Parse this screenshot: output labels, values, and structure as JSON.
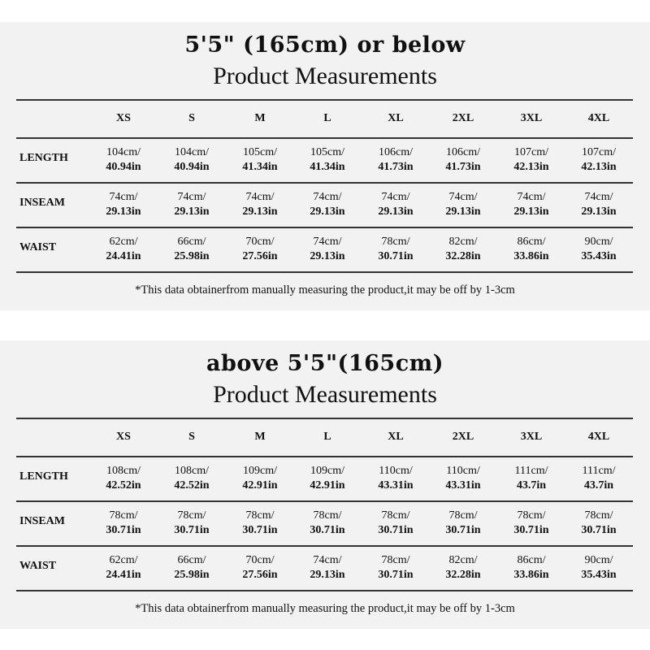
{
  "sizes": [
    "XS",
    "S",
    "M",
    "L",
    "XL",
    "2XL",
    "3XL",
    "4XL"
  ],
  "panels": [
    {
      "title": "5'5\" (165cm) or below",
      "subtitle": "Product Measurements",
      "rows": [
        {
          "label": "LENGTH",
          "cm": [
            "104cm/",
            "104cm/",
            "105cm/",
            "105cm/",
            "106cm/",
            "106cm/",
            "107cm/",
            "107cm/"
          ],
          "in": [
            "40.94in",
            "40.94in",
            "41.34in",
            "41.34in",
            "41.73in",
            "41.73in",
            "42.13in",
            "42.13in"
          ]
        },
        {
          "label": "INSEAM",
          "cm": [
            "74cm/",
            "74cm/",
            "74cm/",
            "74cm/",
            "74cm/",
            "74cm/",
            "74cm/",
            "74cm/"
          ],
          "in": [
            "29.13in",
            "29.13in",
            "29.13in",
            "29.13in",
            "29.13in",
            "29.13in",
            "29.13in",
            "29.13in"
          ]
        },
        {
          "label": "WAIST",
          "cm": [
            "62cm/",
            "66cm/",
            "70cm/",
            "74cm/",
            "78cm/",
            "82cm/",
            "86cm/",
            "90cm/"
          ],
          "in": [
            "24.41in",
            "25.98in",
            "27.56in",
            "29.13in",
            "30.71in",
            "32.28in",
            "33.86in",
            "35.43in"
          ]
        }
      ],
      "note": "*This data obtainerfrom manually measuring the product,it may be off by 1-3cm"
    },
    {
      "title": "above 5'5\"(165cm)",
      "subtitle": "Product Measurements",
      "rows": [
        {
          "label": "LENGTH",
          "cm": [
            "108cm/",
            "108cm/",
            "109cm/",
            "109cm/",
            "110cm/",
            "110cm/",
            "111cm/",
            "111cm/"
          ],
          "in": [
            "42.52in",
            "42.52in",
            "42.91in",
            "42.91in",
            "43.31in",
            "43.31in",
            "43.7in",
            "43.7in"
          ]
        },
        {
          "label": "INSEAM",
          "cm": [
            "78cm/",
            "78cm/",
            "78cm/",
            "78cm/",
            "78cm/",
            "78cm/",
            "78cm/",
            "78cm/"
          ],
          "in": [
            "30.71in",
            "30.71in",
            "30.71in",
            "30.71in",
            "30.71in",
            "30.71in",
            "30.71in",
            "30.71in"
          ]
        },
        {
          "label": "WAIST",
          "cm": [
            "62cm/",
            "66cm/",
            "70cm/",
            "74cm/",
            "78cm/",
            "82cm/",
            "86cm/",
            "90cm/"
          ],
          "in": [
            "24.41in",
            "25.98in",
            "27.56in",
            "29.13in",
            "30.71in",
            "32.28in",
            "33.86in",
            "35.43in"
          ]
        }
      ],
      "note": "*This data obtainerfrom manually measuring the product,it may be off by 1-3cm"
    }
  ]
}
